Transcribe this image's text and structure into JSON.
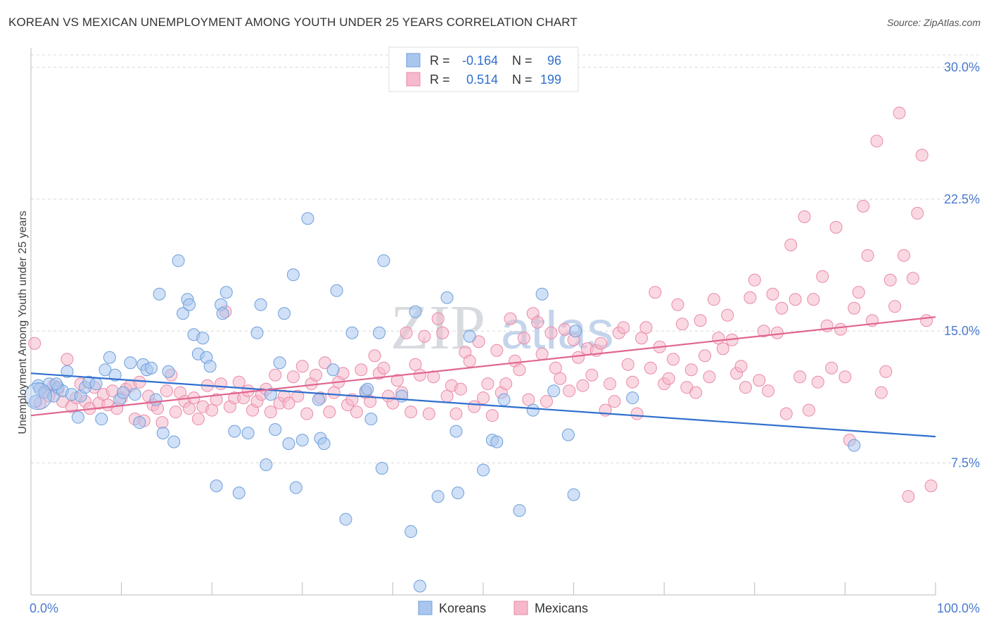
{
  "header": {
    "title": "KOREAN VS MEXICAN UNEMPLOYMENT AMONG YOUTH UNDER 25 YEARS CORRELATION CHART",
    "source": "Source: ZipAtlas.com"
  },
  "watermark": {
    "part1": "ZIP",
    "part2": "atlas"
  },
  "colors": {
    "koreans_fill": "#a9c6ef",
    "koreans_stroke": "#6e9fdd",
    "koreans_line": "#2f6fce",
    "mexicans_fill": "#f6b8cb",
    "mexicans_stroke": "#e98aa8",
    "mexicans_line": "#e0668f",
    "tick_label": "#4a7bd0",
    "grid": "#d8d8d8"
  },
  "legend_top": {
    "rows": [
      {
        "r_label": "R = ",
        "r_value": "-0.164",
        "n_label": "N = ",
        "n_value": "96"
      },
      {
        "r_label": "R = ",
        "r_value": "0.514",
        "n_label": "N = ",
        "n_value": "199"
      }
    ]
  },
  "chart_data": {
    "type": "scatter",
    "title": "KOREAN VS MEXICAN UNEMPLOYMENT AMONG YOUTH UNDER 25 YEARS CORRELATION CHART",
    "xlabel": "",
    "ylabel": "Unemployment Among Youth under 25 years",
    "xlim": [
      0,
      100
    ],
    "ylim": [
      0,
      30.7
    ],
    "x_tick_labels": [
      "0.0%",
      "100.0%"
    ],
    "y_ticks": [
      7.5,
      15.0,
      22.5,
      30.0
    ],
    "y_tick_labels": [
      "7.5%",
      "15.0%",
      "22.5%",
      "30.0%"
    ],
    "grid": true,
    "legend": [
      "Koreans",
      "Mexicans"
    ],
    "series": [
      {
        "name": "Koreans",
        "r": -0.164,
        "n": 96,
        "trend": {
          "x": [
            0,
            100
          ],
          "y": [
            12.6,
            9.0
          ]
        },
        "points": [
          [
            0.5,
            11.0
          ],
          [
            0.8,
            11.9
          ],
          [
            1.0,
            11.7
          ],
          [
            1.5,
            11.5
          ],
          [
            2.0,
            12.0
          ],
          [
            2.5,
            11.3
          ],
          [
            3.0,
            11.8
          ],
          [
            3.5,
            11.6
          ],
          [
            4.0,
            12.7
          ],
          [
            4.5,
            11.4
          ],
          [
            5.2,
            10.1
          ],
          [
            5.5,
            11.3
          ],
          [
            6.0,
            11.8
          ],
          [
            6.4,
            12.1
          ],
          [
            7.2,
            12.0
          ],
          [
            7.8,
            10.0
          ],
          [
            8.2,
            12.8
          ],
          [
            8.7,
            13.5
          ],
          [
            9.3,
            12.5
          ],
          [
            9.8,
            11.1
          ],
          [
            10.2,
            11.5
          ],
          [
            11.0,
            13.2
          ],
          [
            11.5,
            11.4
          ],
          [
            12.0,
            9.8
          ],
          [
            12.4,
            13.1
          ],
          [
            12.8,
            12.8
          ],
          [
            13.3,
            12.9
          ],
          [
            13.8,
            11.1
          ],
          [
            14.2,
            17.1
          ],
          [
            14.6,
            9.2
          ],
          [
            15.2,
            12.7
          ],
          [
            15.8,
            8.7
          ],
          [
            16.3,
            19.0
          ],
          [
            16.8,
            16.0
          ],
          [
            17.3,
            16.8
          ],
          [
            17.5,
            16.5
          ],
          [
            18.0,
            14.8
          ],
          [
            18.5,
            13.7
          ],
          [
            19.0,
            14.6
          ],
          [
            19.4,
            13.5
          ],
          [
            19.8,
            13.0
          ],
          [
            20.5,
            6.2
          ],
          [
            21.0,
            16.5
          ],
          [
            21.2,
            16.0
          ],
          [
            21.6,
            17.2
          ],
          [
            22.5,
            9.3
          ],
          [
            23.0,
            5.8
          ],
          [
            24.0,
            9.2
          ],
          [
            25.0,
            14.9
          ],
          [
            25.4,
            16.5
          ],
          [
            26.0,
            7.4
          ],
          [
            26.5,
            11.4
          ],
          [
            27.0,
            9.4
          ],
          [
            27.5,
            13.2
          ],
          [
            28.0,
            16.0
          ],
          [
            28.5,
            8.6
          ],
          [
            29.0,
            18.2
          ],
          [
            29.3,
            6.1
          ],
          [
            30.0,
            8.8
          ],
          [
            30.6,
            21.4
          ],
          [
            31.8,
            11.1
          ],
          [
            32.0,
            8.9
          ],
          [
            32.4,
            8.6
          ],
          [
            33.4,
            12.8
          ],
          [
            33.8,
            17.3
          ],
          [
            34.8,
            4.3
          ],
          [
            35.5,
            14.9
          ],
          [
            37.0,
            11.6
          ],
          [
            37.2,
            11.7
          ],
          [
            37.6,
            10.0
          ],
          [
            38.5,
            14.9
          ],
          [
            38.8,
            7.2
          ],
          [
            39.0,
            19.0
          ],
          [
            41.0,
            11.3
          ],
          [
            42.0,
            3.6
          ],
          [
            42.5,
            16.1
          ],
          [
            43.0,
            0.5
          ],
          [
            45.0,
            5.6
          ],
          [
            46.0,
            16.9
          ],
          [
            47.0,
            9.3
          ],
          [
            47.2,
            5.8
          ],
          [
            48.5,
            14.7
          ],
          [
            50.0,
            7.1
          ],
          [
            51.0,
            8.8
          ],
          [
            51.5,
            8.7
          ],
          [
            52.3,
            11.1
          ],
          [
            54.0,
            4.8
          ],
          [
            55.5,
            10.5
          ],
          [
            56.5,
            17.1
          ],
          [
            57.8,
            11.6
          ],
          [
            59.4,
            9.1
          ],
          [
            60.0,
            5.7
          ],
          [
            66.5,
            11.2
          ],
          [
            91.0,
            8.5
          ],
          [
            60.2,
            15.0
          ],
          [
            2.8,
            12.0
          ]
        ]
      },
      {
        "name": "Mexicans",
        "r": 0.514,
        "n": 199,
        "trend": {
          "x": [
            0,
            100
          ],
          "y": [
            10.2,
            15.8
          ]
        },
        "points": [
          [
            0.4,
            14.3
          ],
          [
            1.0,
            10.9
          ],
          [
            1.5,
            11.6
          ],
          [
            2.0,
            11.3
          ],
          [
            2.5,
            11.9
          ],
          [
            3.0,
            11.7
          ],
          [
            3.5,
            11.0
          ],
          [
            4.0,
            13.4
          ],
          [
            4.5,
            10.7
          ],
          [
            5.0,
            11.2
          ],
          [
            5.5,
            12.0
          ],
          [
            6.0,
            11.0
          ],
          [
            6.5,
            10.6
          ],
          [
            7.0,
            11.8
          ],
          [
            7.5,
            10.9
          ],
          [
            8.0,
            11.4
          ],
          [
            8.5,
            10.8
          ],
          [
            9.0,
            11.6
          ],
          [
            9.5,
            10.6
          ],
          [
            10.0,
            11.2
          ],
          [
            10.5,
            11.7
          ],
          [
            11.0,
            11.9
          ],
          [
            11.5,
            10.0
          ],
          [
            12.0,
            12.1
          ],
          [
            12.5,
            9.9
          ],
          [
            13.0,
            11.3
          ],
          [
            13.5,
            10.8
          ],
          [
            14.0,
            10.6
          ],
          [
            14.5,
            9.8
          ],
          [
            15.0,
            11.6
          ],
          [
            15.5,
            12.5
          ],
          [
            16.0,
            10.4
          ],
          [
            16.5,
            11.5
          ],
          [
            17.0,
            11.0
          ],
          [
            17.5,
            10.6
          ],
          [
            18.0,
            11.2
          ],
          [
            18.5,
            10.0
          ],
          [
            19.0,
            10.7
          ],
          [
            19.5,
            11.9
          ],
          [
            20.0,
            10.5
          ],
          [
            20.5,
            11.1
          ],
          [
            21.0,
            12.0
          ],
          [
            21.5,
            16.1
          ],
          [
            22.0,
            10.7
          ],
          [
            22.5,
            11.2
          ],
          [
            23.0,
            12.1
          ],
          [
            23.5,
            11.2
          ],
          [
            24.0,
            11.6
          ],
          [
            24.5,
            10.5
          ],
          [
            25.0,
            11.0
          ],
          [
            25.5,
            11.4
          ],
          [
            26.0,
            11.7
          ],
          [
            26.5,
            10.4
          ],
          [
            27.0,
            12.5
          ],
          [
            27.5,
            10.9
          ],
          [
            28.0,
            11.3
          ],
          [
            28.5,
            10.9
          ],
          [
            29.0,
            12.4
          ],
          [
            29.5,
            11.3
          ],
          [
            30.0,
            13.0
          ],
          [
            30.5,
            10.3
          ],
          [
            31.0,
            12.0
          ],
          [
            31.5,
            12.5
          ],
          [
            32.0,
            11.2
          ],
          [
            32.5,
            13.2
          ],
          [
            33.0,
            10.4
          ],
          [
            33.5,
            11.5
          ],
          [
            34.0,
            12.1
          ],
          [
            34.5,
            12.6
          ],
          [
            35.0,
            10.8
          ],
          [
            35.5,
            11.1
          ],
          [
            36.0,
            10.4
          ],
          [
            36.5,
            12.8
          ],
          [
            37.0,
            11.5
          ],
          [
            37.5,
            11.0
          ],
          [
            38.0,
            13.6
          ],
          [
            38.5,
            12.6
          ],
          [
            39.0,
            12.9
          ],
          [
            39.5,
            11.3
          ],
          [
            40.0,
            10.9
          ],
          [
            40.5,
            12.2
          ],
          [
            41.0,
            11.5
          ],
          [
            41.5,
            14.9
          ],
          [
            42.0,
            10.4
          ],
          [
            42.5,
            13.1
          ],
          [
            43.0,
            12.5
          ],
          [
            43.5,
            14.7
          ],
          [
            44.0,
            10.3
          ],
          [
            44.5,
            12.4
          ],
          [
            45.0,
            15.7
          ],
          [
            45.5,
            14.9
          ],
          [
            46.0,
            11.3
          ],
          [
            46.5,
            11.9
          ],
          [
            47.0,
            10.3
          ],
          [
            47.5,
            11.7
          ],
          [
            48.0,
            13.8
          ],
          [
            48.5,
            13.3
          ],
          [
            49.0,
            10.7
          ],
          [
            49.5,
            14.4
          ],
          [
            50.0,
            11.2
          ],
          [
            50.5,
            12.0
          ],
          [
            51.0,
            10.2
          ],
          [
            51.5,
            13.9
          ],
          [
            52.0,
            11.5
          ],
          [
            52.5,
            12.0
          ],
          [
            53.0,
            15.7
          ],
          [
            53.5,
            13.3
          ],
          [
            54.0,
            12.8
          ],
          [
            54.5,
            14.6
          ],
          [
            55.0,
            11.1
          ],
          [
            55.5,
            16.0
          ],
          [
            56.0,
            15.5
          ],
          [
            56.5,
            13.7
          ],
          [
            57.0,
            11.0
          ],
          [
            57.5,
            14.9
          ],
          [
            58.0,
            12.9
          ],
          [
            58.5,
            12.3
          ],
          [
            59.0,
            15.1
          ],
          [
            59.5,
            11.6
          ],
          [
            60.0,
            14.5
          ],
          [
            60.5,
            13.5
          ],
          [
            61.0,
            11.9
          ],
          [
            61.5,
            14.0
          ],
          [
            62.0,
            12.5
          ],
          [
            62.5,
            13.9
          ],
          [
            63.0,
            14.3
          ],
          [
            63.5,
            10.5
          ],
          [
            64.0,
            12.0
          ],
          [
            64.5,
            11.0
          ],
          [
            65.0,
            14.9
          ],
          [
            65.5,
            15.2
          ],
          [
            66.0,
            13.1
          ],
          [
            66.5,
            12.1
          ],
          [
            67.0,
            10.3
          ],
          [
            67.5,
            14.6
          ],
          [
            68.0,
            15.2
          ],
          [
            68.5,
            12.9
          ],
          [
            69.0,
            17.2
          ],
          [
            69.5,
            14.1
          ],
          [
            70.0,
            12.0
          ],
          [
            70.5,
            12.3
          ],
          [
            71.0,
            13.4
          ],
          [
            71.5,
            16.5
          ],
          [
            72.0,
            15.4
          ],
          [
            72.5,
            11.8
          ],
          [
            73.0,
            12.8
          ],
          [
            73.5,
            11.5
          ],
          [
            74.0,
            15.6
          ],
          [
            74.5,
            13.6
          ],
          [
            75.0,
            12.4
          ],
          [
            75.5,
            16.8
          ],
          [
            76.0,
            14.6
          ],
          [
            76.5,
            14.0
          ],
          [
            77.0,
            15.9
          ],
          [
            77.5,
            14.5
          ],
          [
            78.0,
            12.6
          ],
          [
            78.5,
            13.0
          ],
          [
            79.0,
            11.8
          ],
          [
            79.5,
            16.9
          ],
          [
            80.0,
            17.9
          ],
          [
            80.5,
            12.2
          ],
          [
            81.0,
            15.0
          ],
          [
            81.5,
            11.6
          ],
          [
            82.0,
            17.1
          ],
          [
            82.5,
            14.9
          ],
          [
            83.0,
            16.3
          ],
          [
            83.5,
            10.3
          ],
          [
            84.0,
            19.9
          ],
          [
            84.5,
            16.8
          ],
          [
            85.0,
            12.4
          ],
          [
            85.5,
            21.5
          ],
          [
            86.0,
            10.5
          ],
          [
            86.5,
            16.8
          ],
          [
            87.0,
            12.1
          ],
          [
            87.5,
            18.1
          ],
          [
            88.0,
            15.3
          ],
          [
            88.5,
            12.9
          ],
          [
            89.0,
            20.9
          ],
          [
            89.5,
            15.1
          ],
          [
            90.0,
            12.4
          ],
          [
            90.5,
            8.8
          ],
          [
            91.0,
            16.3
          ],
          [
            91.5,
            17.2
          ],
          [
            92.0,
            22.1
          ],
          [
            92.5,
            19.3
          ],
          [
            93.0,
            15.6
          ],
          [
            93.5,
            25.8
          ],
          [
            94.0,
            11.5
          ],
          [
            94.5,
            12.7
          ],
          [
            95.0,
            17.9
          ],
          [
            95.5,
            16.4
          ],
          [
            96.0,
            27.4
          ],
          [
            96.5,
            19.3
          ],
          [
            97.0,
            5.6
          ],
          [
            97.5,
            18.0
          ],
          [
            98.0,
            21.7
          ],
          [
            98.5,
            25.0
          ],
          [
            99.0,
            15.6
          ],
          [
            99.5,
            6.2
          ]
        ]
      }
    ]
  }
}
